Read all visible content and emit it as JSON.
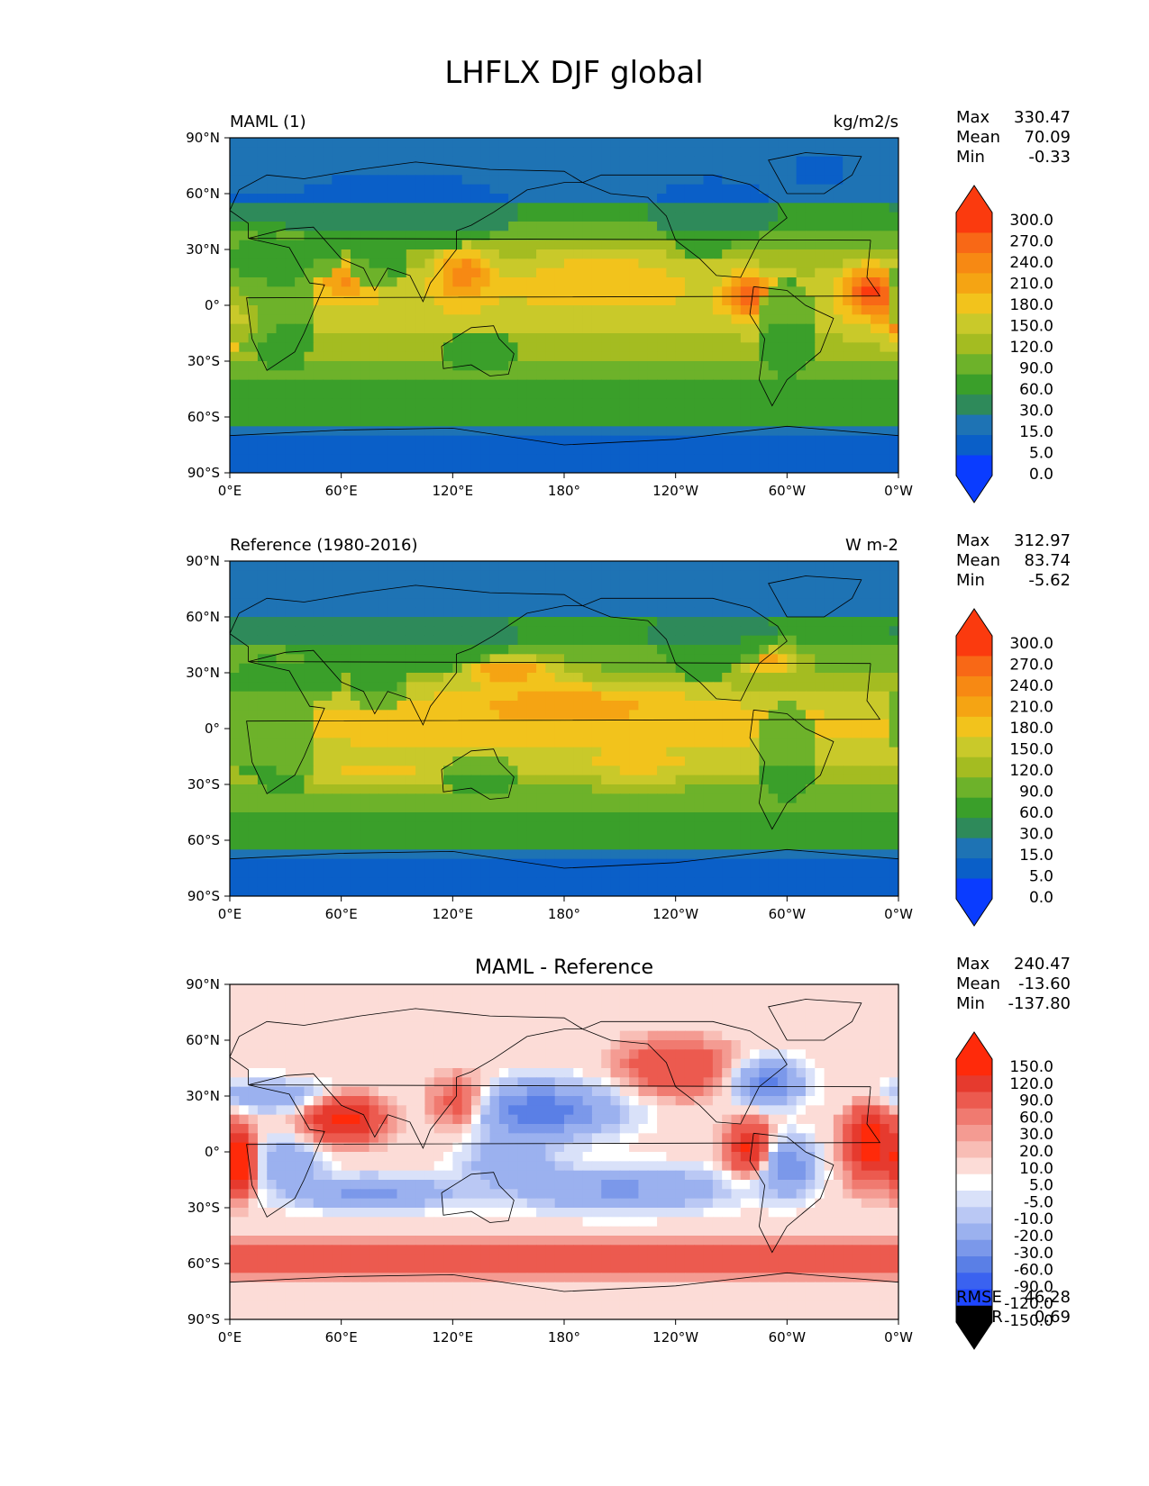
{
  "figure_title": "LHFLX DJF global",
  "colors": {
    "abs_levels": [
      "#0a3cff",
      "#0a5fc8",
      "#1e73b4",
      "#2e8a5a",
      "#3a9f2a",
      "#6db22a",
      "#a4bc21",
      "#c9c92a",
      "#f2c31c",
      "#f5a413",
      "#f78913",
      "#f86816",
      "#fb3a0e"
    ],
    "diff_levels": [
      "#1e46ff",
      "#3a62f0",
      "#5a7fe6",
      "#7b98ea",
      "#9bb1ef",
      "#bac8f4",
      "#d9e1f9",
      "#ffffff",
      "#fcdcd7",
      "#f8bdb5",
      "#f49b92",
      "#f07a70",
      "#ec5a4f",
      "#e63a2e",
      "#ff2a0a"
    ],
    "land_line": "#000000"
  },
  "chart_data": [
    {
      "type": "heatmap",
      "left_title": "MAML (1)",
      "right_title": "kg/m2/s",
      "center_title": "",
      "x_ticks": [
        "0°E",
        "60°E",
        "120°E",
        "180°",
        "120°W",
        "60°W",
        "0°W"
      ],
      "y_ticks": [
        "90°N",
        "60°N",
        "30°N",
        "0°",
        "30°S",
        "60°S",
        "90°S"
      ],
      "xlim": [
        0,
        360
      ],
      "ylim": [
        -90,
        90
      ],
      "colorbar": {
        "levels": [
          "300.0",
          "270.0",
          "240.0",
          "210.0",
          "180.0",
          "150.0",
          "120.0",
          "90.0",
          "60.0",
          "30.0",
          "15.0",
          "5.0",
          "0.0"
        ],
        "extend": "both"
      },
      "stats": [
        {
          "label": "Max",
          "value": "330.47"
        },
        {
          "label": "Mean",
          "value": "70.09"
        },
        {
          "label": "Min",
          "value": "-0.33"
        }
      ],
      "field": "model"
    },
    {
      "type": "heatmap",
      "left_title": "Reference (1980-2016)",
      "right_title": "W m-2",
      "center_title": "",
      "x_ticks": [
        "0°E",
        "60°E",
        "120°E",
        "180°",
        "120°W",
        "60°W",
        "0°W"
      ],
      "y_ticks": [
        "90°N",
        "60°N",
        "30°N",
        "0°",
        "30°S",
        "60°S",
        "90°S"
      ],
      "xlim": [
        0,
        360
      ],
      "ylim": [
        -90,
        90
      ],
      "colorbar": {
        "levels": [
          "300.0",
          "270.0",
          "240.0",
          "210.0",
          "180.0",
          "150.0",
          "120.0",
          "90.0",
          "60.0",
          "30.0",
          "15.0",
          "5.0",
          "0.0"
        ],
        "extend": "both"
      },
      "stats": [
        {
          "label": "Max",
          "value": "312.97"
        },
        {
          "label": "Mean",
          "value": "83.74"
        },
        {
          "label": "Min",
          "value": "-5.62"
        }
      ],
      "field": "reference"
    },
    {
      "type": "heatmap",
      "left_title": "",
      "right_title": "",
      "center_title": "MAML - Reference",
      "x_ticks": [
        "0°E",
        "60°E",
        "120°E",
        "180°",
        "120°W",
        "60°W",
        "0°W"
      ],
      "y_ticks": [
        "90°N",
        "60°N",
        "30°N",
        "0°",
        "30°S",
        "60°S",
        "90°S"
      ],
      "xlim": [
        0,
        360
      ],
      "ylim": [
        -90,
        90
      ],
      "colorbar": {
        "levels": [
          "150.0",
          "120.0",
          "90.0",
          "60.0",
          "30.0",
          "20.0",
          "10.0",
          "5.0",
          "-5.0",
          "-10.0",
          "-20.0",
          "-30.0",
          "-60.0",
          "-90.0",
          "-120.0",
          "-150.0"
        ],
        "extend": "both"
      },
      "stats": [
        {
          "label": "Max",
          "value": "240.47"
        },
        {
          "label": "Mean",
          "value": "-13.60"
        },
        {
          "label": "Min",
          "value": "-137.80"
        }
      ],
      "bottom_stats": [
        {
          "label": "RMSE",
          "value": "46.28"
        },
        {
          "label": "CORR",
          "value": "0.69"
        }
      ],
      "field": "difference"
    }
  ]
}
